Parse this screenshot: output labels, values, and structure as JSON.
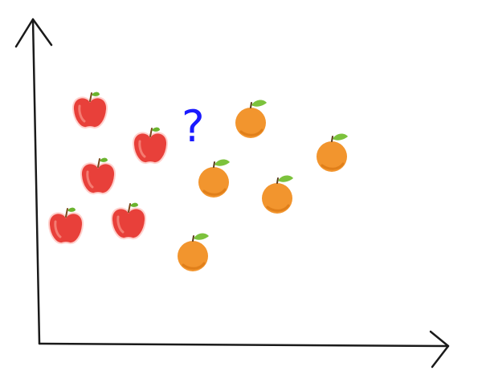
{
  "diagram": {
    "question_mark": "?",
    "colors": {
      "axis": "#1a1a1a",
      "apple": "#e8403a",
      "apple_highlight": "#f47c72",
      "apple_outline": "#ffd0cc",
      "apple_stem": "#7a4a1e",
      "apple_leaf": "#6bb32e",
      "orange": "#f2952e",
      "orange_shade": "#e07f1a",
      "orange_leaf": "#7cc23c",
      "orange_stem": "#5a3a1a",
      "question_mark": "#1a1aff"
    },
    "icons": {
      "apple": "apple-icon",
      "orange": "orange-icon"
    }
  }
}
